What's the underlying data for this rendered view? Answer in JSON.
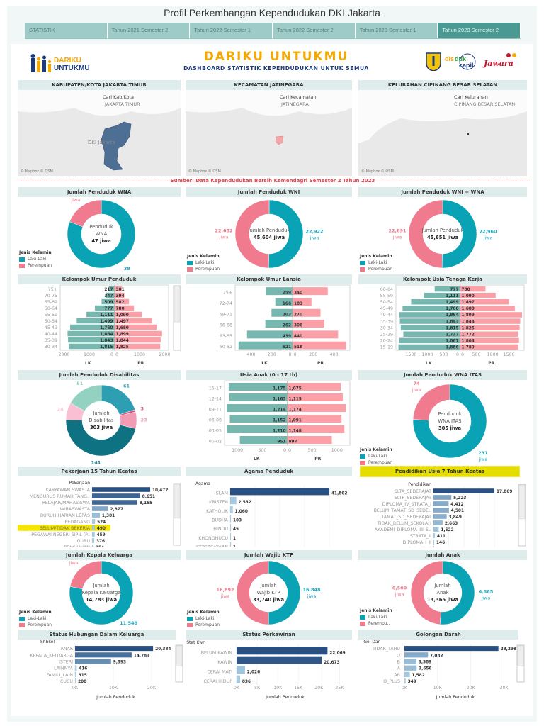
{
  "page_title": "Profil Perkembangan Kependudukan DKI Jakarta",
  "tabs": [
    {
      "label": "STATISTIK",
      "active": false
    },
    {
      "label": "Tahun 2021 Semester 2",
      "active": false
    },
    {
      "label": "Tahun 2022 Semester 1",
      "active": false
    },
    {
      "label": "Tahun 2022 Semester 2",
      "active": false
    },
    {
      "label": "Tahun 2023 Semester 1",
      "active": false
    },
    {
      "label": "Tahun 2023 Semester 2",
      "active": true
    }
  ],
  "banner": {
    "logo_left": "DARIKU UNTUKMU",
    "title": "DARIKU UNTUKMU",
    "subtitle": "DASHBOARD STATISTIK KEPENDUDUKAN UNTUK SEMUA",
    "logo_disdukcapil": "disdukcapil",
    "logo_jawara": "Jawara"
  },
  "colors": {
    "laki": "#0aa3b5",
    "perempuan": "#f07a8e",
    "lk_bar": "#76b7b0",
    "pr_bar": "#fca0a8",
    "header_bg": "#deedeb",
    "source_red": "#e8424c",
    "highlight": "#f4e600"
  },
  "maps": [
    {
      "header": "KABUPATEN/KOTA JAKARTA TIMUR",
      "search_label": "Cari Kab/Kota",
      "search_value": "JAKARTA TIMUR",
      "place_label": "DKI Jakarta",
      "attribution": "© Mapbox © OSM"
    },
    {
      "header": "KECAMATAN JATINEGARA",
      "search_label": "Cari Kecamatan",
      "search_value": "JATINEGARA",
      "attribution": "© Mapbox © OSM"
    },
    {
      "header": "KELURAHAN CIPINANG BESAR SELATAN",
      "search_label": "Cari Kelurahan",
      "search_value": "CIPINANG BESAR SELATAN",
      "attribution": "© Mapbox © OSM"
    }
  ],
  "source": "Sumber: Data Kependudukan Bersih Kemendagri Semester 2 Tahun 2023",
  "legend": {
    "title": "Jenis Kelamin",
    "laki": "Laki-Laki",
    "perempuan": "Perempuan",
    "perempuan_short": "Perempu.."
  },
  "chart_data": [
    {
      "id": "wna",
      "type": "pie",
      "title": "Jumlah Penduduk WNA",
      "unit": "jiwa",
      "center": [
        "Penduduk",
        "WNA",
        "47 jiwa"
      ],
      "slices": [
        {
          "label": "Laki-Laki",
          "value": 38,
          "color": "#0aa3b5"
        },
        {
          "label": "Perempuan",
          "value": 9,
          "color": "#f07a8e"
        }
      ]
    },
    {
      "id": "wni",
      "type": "pie",
      "title": "Jumlah Penduduk WNI",
      "unit": "jiwa",
      "center": [
        "Jumlah Penduduk",
        "45,604 jiwa"
      ],
      "slices": [
        {
          "label": "Laki-Laki",
          "value": 22922,
          "color": "#0aa3b5"
        },
        {
          "label": "Perempuan",
          "value": 22682,
          "color": "#f07a8e"
        }
      ]
    },
    {
      "id": "wniwna",
      "type": "pie",
      "title": "Jumlah Penduduk WNI + WNA",
      "unit": "jiwa",
      "center": [
        "Jumlah Penduduk",
        "45,651 jiwa"
      ],
      "slices": [
        {
          "label": "Laki-Laki",
          "value": 22960,
          "color": "#0aa3b5"
        },
        {
          "label": "Perempuan",
          "value": 22691,
          "color": "#f07a8e"
        }
      ]
    },
    {
      "id": "umur",
      "type": "bar",
      "subtype": "pyramid",
      "title": "Kelompok Umur Penduduk",
      "xlabels": [
        "LK",
        "PR"
      ],
      "axis_max": 2100,
      "ticks": [
        0,
        1000,
        2000
      ],
      "scrollable": true,
      "rows": [
        {
          "group": "75+",
          "lk": 217,
          "pr": 301
        },
        {
          "group": "70-75",
          "lk": 347,
          "pr": 394
        },
        {
          "group": "65-69",
          "lk": 509,
          "pr": 582
        },
        {
          "group": "60-64",
          "lk": 777,
          "pr": 780
        },
        {
          "group": "55-59",
          "lk": 1111,
          "pr": 1090
        },
        {
          "group": "50-54",
          "lk": 1499,
          "pr": 1497
        },
        {
          "group": "45-49",
          "lk": 1760,
          "pr": 1680
        },
        {
          "group": "40-44",
          "lk": 1864,
          "pr": 1899
        },
        {
          "group": "35-39",
          "lk": 1843,
          "pr": 1844
        },
        {
          "group": "30-34",
          "lk": 1815,
          "pr": 1825
        },
        {
          "group": "25-29",
          "lk": 1737,
          "pr": 1772
        }
      ]
    },
    {
      "id": "lansia",
      "type": "bar",
      "subtype": "pyramid",
      "title": "Kelompok Umur Lansia",
      "xlabels": [
        "LK",
        "PR"
      ],
      "axis_max": 540,
      "ticks": [
        0,
        200,
        400
      ],
      "rows": [
        {
          "group": "75+",
          "lk": 259,
          "pr": 340
        },
        {
          "group": "72-74",
          "lk": 166,
          "pr": 183
        },
        {
          "group": "69-71",
          "lk": 203,
          "pr": 270
        },
        {
          "group": "66-68",
          "lk": 262,
          "pr": 306
        },
        {
          "group": "63-65",
          "lk": 439,
          "pr": 440
        },
        {
          "group": "60-62",
          "lk": 521,
          "pr": 518
        }
      ]
    },
    {
      "id": "kerja",
      "type": "bar",
      "subtype": "pyramid",
      "title": "Kelompok Usia Tenaga Kerja",
      "xlabels": [
        "LK",
        "PR"
      ],
      "axis_max": 1920,
      "ticks": [
        0,
        500,
        1000,
        1500
      ],
      "rows": [
        {
          "group": "60-64",
          "lk": 777,
          "pr": 780
        },
        {
          "group": "55-59",
          "lk": 1111,
          "pr": 1090
        },
        {
          "group": "50-54",
          "lk": 1499,
          "pr": 1497
        },
        {
          "group": "45-49",
          "lk": 1760,
          "pr": 1680
        },
        {
          "group": "40-44",
          "lk": 1864,
          "pr": 1899
        },
        {
          "group": "35-39",
          "lk": 1843,
          "pr": 1844
        },
        {
          "group": "30-34",
          "lk": 1815,
          "pr": 1825
        },
        {
          "group": "25-29",
          "lk": 1737,
          "pr": 1772
        },
        {
          "group": "20-24",
          "lk": 1867,
          "pr": 1804
        },
        {
          "group": "15-19",
          "lk": 1886,
          "pr": 1789
        }
      ]
    },
    {
      "id": "disab",
      "type": "pie",
      "title": "Jumlah Penduduk Disabilitas",
      "center": [
        "Jumlah",
        "Disabilitas",
        "303 jiwa"
      ],
      "slices": [
        {
          "value": 61,
          "color": "#2e9fb3"
        },
        {
          "value": 3,
          "color": "#d9507a"
        },
        {
          "value": 23,
          "color": "#f29bb5"
        },
        {
          "value": 141,
          "color": "#0e7283"
        },
        {
          "value": 24,
          "color": "#fbbfd3"
        },
        {
          "value": 51,
          "color": "#93d1c0"
        }
      ]
    },
    {
      "id": "anakusia",
      "type": "bar",
      "subtype": "pyramid",
      "title": "Usia Anak (0 - 17 th)",
      "xlabels": [
        "LK",
        "PR"
      ],
      "axis_max": 1230,
      "ticks": [
        0,
        500,
        1000
      ],
      "rows": [
        {
          "group": "15-17",
          "lk": 1175,
          "pr": 1075
        },
        {
          "group": "12-14",
          "lk": 1163,
          "pr": 1115
        },
        {
          "group": "09-11",
          "lk": 1214,
          "pr": 1174
        },
        {
          "group": "06-08",
          "lk": 1152,
          "pr": 1091
        },
        {
          "group": "03-05",
          "lk": 1210,
          "pr": 1148
        },
        {
          "group": "00-02",
          "lk": 951,
          "pr": 897
        }
      ]
    },
    {
      "id": "itas",
      "type": "pie",
      "title": "Jumlah Penduduk WNA ITAS",
      "unit": "jiwa",
      "center": [
        "Penduduk",
        "WNA ITAS",
        "305 jiwa"
      ],
      "slices": [
        {
          "label": "Laki-Laki",
          "value": 231,
          "color": "#0aa3b5"
        },
        {
          "label": "Perempuan",
          "value": 74,
          "color": "#f07a8e"
        }
      ]
    },
    {
      "id": "pekerjaan",
      "type": "bar",
      "title": "Pekerjaan 15 Tahun Keatas",
      "dim_label": "Pekerjaan",
      "xmax": 10472,
      "highlight": "BELUM/TIDAK BEKERJA",
      "scrollable": true,
      "rows": [
        {
          "label": "KARYAWAN SWASTA",
          "value": 10472
        },
        {
          "label": "MENGURUS RUMAH TANG..",
          "value": 8651
        },
        {
          "label": "PELAJAR/MAHASISWA",
          "value": 8155
        },
        {
          "label": "WIRASWASTA",
          "value": 2877
        },
        {
          "label": "BURUH HARIAN LEPAS",
          "value": 1381
        },
        {
          "label": "PEDAGANG",
          "value": 524
        },
        {
          "label": "BELUM/TIDAK BEKERJA",
          "value": 490
        },
        {
          "label": "PEGAWAI NEGERI SIPIL (P..",
          "value": 459
        },
        {
          "label": "GURU",
          "value": 376
        },
        {
          "label": "PENSIUNAN",
          "value": 254
        }
      ]
    },
    {
      "id": "agama",
      "type": "bar",
      "title": "Agama Penduduk",
      "dim_label": "Agama",
      "xmax": 41862,
      "grid": true,
      "rows": [
        {
          "label": "ISLAM",
          "value": 41862
        },
        {
          "label": "KRISTEN",
          "value": 2532
        },
        {
          "label": "KATHOLIK",
          "value": 1060
        },
        {
          "label": "BUDHA",
          "value": 103
        },
        {
          "label": "HINDU",
          "value": 45
        },
        {
          "label": "KHONGHUCU",
          "value": 1
        },
        {
          "label": "KEPERCAYAAN",
          "value": 1
        }
      ]
    },
    {
      "id": "pendidikan",
      "type": "bar",
      "title": "Pendidikan Usia 7 Tahun Keatas",
      "dim_label": "Pendidikan",
      "xmax": 17869,
      "scrollable": true,
      "grid": true,
      "rows": [
        {
          "label": "SLTA_SEDERAJAT",
          "value": 17869
        },
        {
          "label": "SLTP_SEDERAJAT",
          "value": 5223
        },
        {
          "label": "DIPLOMA_IV_STRATA_I",
          "value": 4412
        },
        {
          "label": "BELUM_TAMAT_SD_SEDE..",
          "value": 4501
        },
        {
          "label": "TAMAT_SD_SEDERAJAT",
          "value": 3849
        },
        {
          "label": "TIDAK_BELUM_SEKOLAH",
          "value": 2663
        },
        {
          "label": "AKADEMI_DIPLOMA_III_S..",
          "value": 1522
        },
        {
          "label": "STRATA_II",
          "value": 411
        },
        {
          "label": "DIPLOMA_I_II",
          "value": 146
        },
        {
          "label": "STRATA_III",
          "value": 19
        }
      ]
    },
    {
      "id": "kk",
      "type": "pie",
      "title": "Jumlah Kepala Keluarga",
      "unit": "jiwa",
      "center": [
        "Jumlah",
        "Kepala Keluarga",
        "14,783  jiwa"
      ],
      "slices": [
        {
          "label": "Laki-Laki",
          "value": 11549,
          "color": "#0aa3b5"
        },
        {
          "label": "Perempuan",
          "value": 3234,
          "color": "#f07a8e"
        }
      ]
    },
    {
      "id": "ktp",
      "type": "pie",
      "title": "Jumlah Wajib KTP",
      "unit": "jiwa",
      "center": [
        "Jumlah",
        "Wajib KTP",
        "33,740  jiwa"
      ],
      "slices": [
        {
          "label": "Laki-Laki",
          "value": 16848,
          "color": "#0aa3b5"
        },
        {
          "label": "Perempuan",
          "value": 16892,
          "color": "#f07a8e"
        }
      ]
    },
    {
      "id": "anak",
      "type": "pie",
      "title": "Jumlah Anak",
      "unit": "jiwa",
      "center": [
        "Jumlah",
        "Anak",
        "13,365  jiwa"
      ],
      "slices": [
        {
          "label": "Laki-Laki",
          "value": 6865,
          "color": "#0aa3b5"
        },
        {
          "label": "Perempuan",
          "value": 6500,
          "color": "#f07a8e"
        }
      ]
    },
    {
      "id": "shbkel",
      "type": "bar",
      "title": "Status Hubungan Dalam Keluarga",
      "dim_label": "Shbkel",
      "xlabel": "Jumlah Penduduk",
      "xmax": 25000,
      "grid": true,
      "scrollable": true,
      "ticks": [
        0,
        10000,
        20000
      ],
      "tick_labels": [
        "0K",
        "10K",
        "20K"
      ],
      "rows": [
        {
          "label": "ANAK",
          "value": 20384
        },
        {
          "label": "KEPALA_KELUARGA",
          "value": 14783
        },
        {
          "label": "ISTERI",
          "value": 9393
        },
        {
          "label": "LAINNYA",
          "value": 416
        },
        {
          "label": "FAMILI_LAIN",
          "value": 315
        },
        {
          "label": "CUCU",
          "value": 208
        }
      ]
    },
    {
      "id": "kawin",
      "type": "bar",
      "title": "Status Perkawinan",
      "dim_label": "Stat Kwn",
      "xlabel": "Jumlah Penduduk",
      "xmax": 27000,
      "grid": true,
      "ticks": [
        0,
        5000,
        10000,
        15000,
        20000,
        25000
      ],
      "tick_labels": [
        "0K",
        "5K",
        "10K",
        "15K",
        "20K",
        "25K"
      ],
      "rows": [
        {
          "label": "BELUM KAWIN",
          "value": 22069
        },
        {
          "label": "KAWIN",
          "value": 20673
        },
        {
          "label": "CERAI MATI",
          "value": 2026
        },
        {
          "label": "CERAI HIDUP",
          "value": 836
        }
      ]
    },
    {
      "id": "goldar",
      "type": "bar",
      "title": "Golongan Darah",
      "dim_label": "Gol Dar",
      "xlabel": "Jumlah Penduduk",
      "xmax": 35000,
      "grid": true,
      "scrollable": true,
      "ticks": [
        0,
        10000,
        20000,
        30000
      ],
      "tick_labels": [
        "0K",
        "10K",
        "20K",
        "30K"
      ],
      "rows": [
        {
          "label": "TIDAK_TAHU",
          "value": 28298
        },
        {
          "label": "O",
          "value": 7082
        },
        {
          "label": "B",
          "value": 3589
        },
        {
          "label": "A",
          "value": 3656
        },
        {
          "label": "AB",
          "value": 1582
        },
        {
          "label": "O_PLUS",
          "value": 349
        }
      ]
    }
  ]
}
